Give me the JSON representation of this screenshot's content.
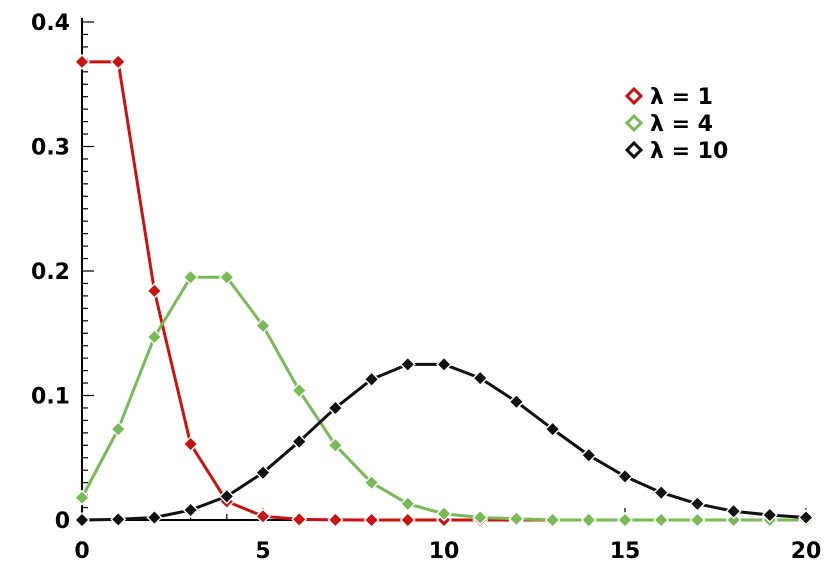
{
  "chart_data": {
    "type": "line",
    "title": "",
    "xlabel": "",
    "ylabel": "",
    "xlim": [
      0,
      20
    ],
    "ylim": [
      0,
      0.4
    ],
    "x_ticks": [
      0,
      5,
      10,
      15,
      20
    ],
    "x_tick_labels": [
      "0",
      "5",
      "10",
      "15",
      "20"
    ],
    "y_ticks": [
      0,
      0.1,
      0.2,
      0.3,
      0.4
    ],
    "y_tick_labels": [
      "0",
      "0.1",
      "0.2",
      "0.3",
      "0.4"
    ],
    "grid": false,
    "legend_position": "top-right",
    "marker": "diamond",
    "series": [
      {
        "name": "λ = 1",
        "color": "#cc1111",
        "x": [
          0,
          1,
          2,
          3,
          4,
          5,
          6,
          7,
          8,
          9,
          10,
          11,
          12,
          13,
          14,
          15,
          16,
          17,
          18,
          19,
          20
        ],
        "values": [
          0.368,
          0.368,
          0.184,
          0.061,
          0.015,
          0.003,
          0.0005,
          0.0001,
          0,
          0,
          0,
          0,
          0,
          0,
          0,
          0,
          0,
          0,
          0,
          0,
          0
        ]
      },
      {
        "name": "λ = 4",
        "color": "#77bb55",
        "x": [
          0,
          1,
          2,
          3,
          4,
          5,
          6,
          7,
          8,
          9,
          10,
          11,
          12,
          13,
          14,
          15,
          16,
          17,
          18,
          19,
          20
        ],
        "values": [
          0.018,
          0.073,
          0.147,
          0.195,
          0.195,
          0.156,
          0.104,
          0.06,
          0.03,
          0.013,
          0.005,
          0.002,
          0.001,
          0,
          0,
          0,
          0,
          0,
          0,
          0,
          0
        ]
      },
      {
        "name": "λ = 10",
        "color": "#111111",
        "x": [
          0,
          1,
          2,
          3,
          4,
          5,
          6,
          7,
          8,
          9,
          10,
          11,
          12,
          13,
          14,
          15,
          16,
          17,
          18,
          19,
          20
        ],
        "values": [
          0,
          0.0005,
          0.002,
          0.008,
          0.019,
          0.038,
          0.063,
          0.09,
          0.113,
          0.125,
          0.125,
          0.114,
          0.095,
          0.073,
          0.052,
          0.035,
          0.022,
          0.013,
          0.007,
          0.004,
          0.002
        ]
      }
    ]
  }
}
